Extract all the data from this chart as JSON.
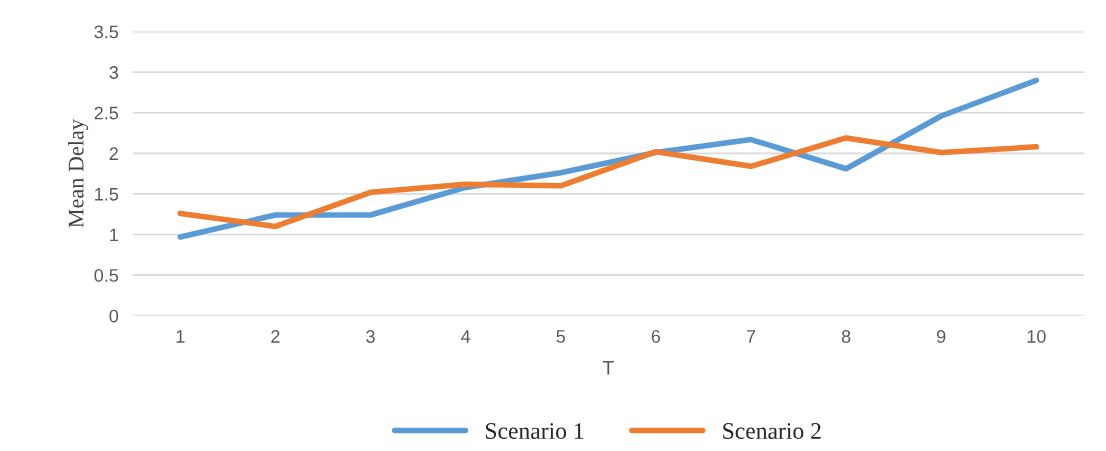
{
  "chart_data": {
    "type": "line",
    "xlabel": "T",
    "ylabel": "Mean Delay",
    "categories": [
      "1",
      "2",
      "3",
      "4",
      "5",
      "6",
      "7",
      "8",
      "9",
      "10"
    ],
    "series": [
      {
        "name": "Scenario 1",
        "color": "#5b9bd5",
        "values": [
          0.97,
          1.24,
          1.24,
          1.58,
          1.76,
          2.01,
          2.17,
          1.81,
          2.46,
          2.9
        ]
      },
      {
        "name": "Scenario 2",
        "color": "#ed7d31",
        "values": [
          1.26,
          1.1,
          1.52,
          1.62,
          1.6,
          2.02,
          1.84,
          2.19,
          2.01,
          2.08
        ]
      }
    ],
    "ylim": [
      0,
      3.5
    ],
    "yticks": [
      0,
      0.5,
      1,
      1.5,
      2,
      2.5,
      3,
      3.5
    ],
    "grid": "y",
    "legend": "bottom",
    "marker": "none",
    "line_style": "solid"
  }
}
